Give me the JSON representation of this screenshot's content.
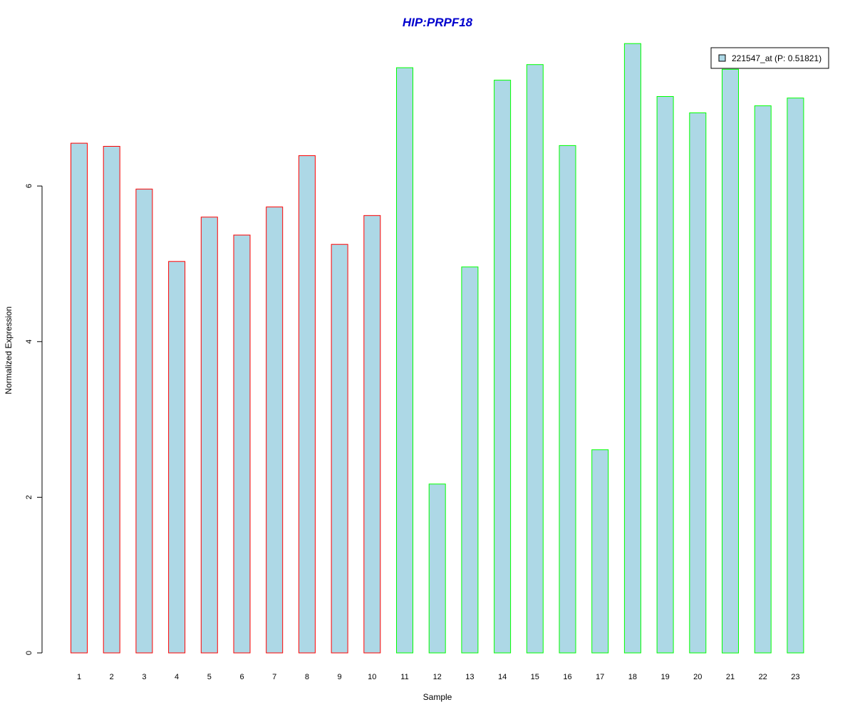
{
  "chart_data": {
    "type": "bar",
    "title": "HIP:PRPF18",
    "xlabel": "Sample",
    "ylabel": "Normalized Expression",
    "categories": [
      "1",
      "2",
      "3",
      "4",
      "5",
      "6",
      "7",
      "8",
      "9",
      "10",
      "11",
      "12",
      "13",
      "14",
      "15",
      "16",
      "17",
      "18",
      "19",
      "20",
      "21",
      "22",
      "23"
    ],
    "series": [
      {
        "name": "221547_at (P: 0.51821)",
        "values": [
          6.55,
          6.51,
          5.96,
          5.03,
          5.6,
          5.37,
          5.73,
          6.39,
          5.25,
          5.62,
          7.52,
          2.17,
          4.96,
          7.36,
          7.56,
          6.52,
          2.61,
          7.83,
          7.15,
          6.94,
          7.5,
          7.03,
          7.13
        ]
      }
    ],
    "bar_border_colors": [
      "#ff0000",
      "#ff0000",
      "#ff0000",
      "#ff0000",
      "#ff0000",
      "#ff0000",
      "#ff0000",
      "#ff0000",
      "#ff0000",
      "#ff0000",
      "#00ff00",
      "#00ff00",
      "#00ff00",
      "#00ff00",
      "#00ff00",
      "#00ff00",
      "#00ff00",
      "#00ff00",
      "#00ff00",
      "#00ff00",
      "#00ff00",
      "#00ff00",
      "#00ff00"
    ],
    "fill_color": "#add8e6",
    "title_color": "#0000cd",
    "yticks": [
      0,
      2,
      4,
      6
    ],
    "ylim": [
      0,
      7.83
    ],
    "grid": false,
    "legend_position": "top-right"
  }
}
